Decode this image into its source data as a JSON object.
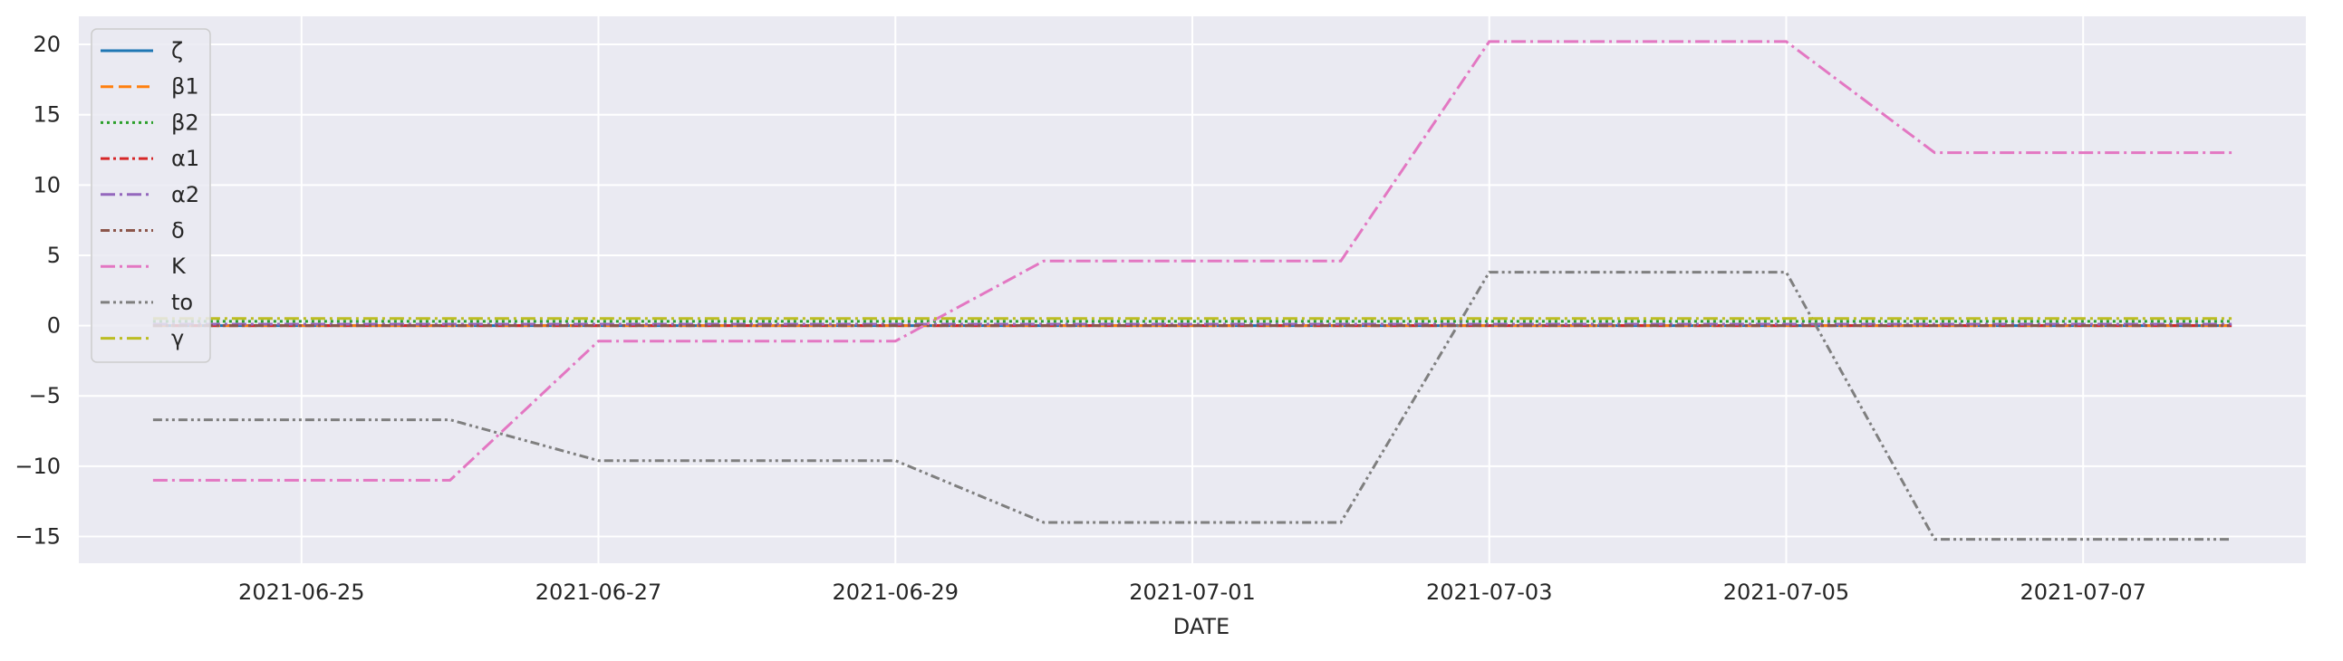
{
  "chart_data": {
    "type": "line",
    "title": "",
    "xlabel": "DATE",
    "ylabel": "",
    "xlim": [
      "2021-06-23T12:00",
      "2021-07-08T12:00"
    ],
    "ylim": [
      -16.9,
      22.0
    ],
    "grid": true,
    "legend_position": "top-left",
    "x_ticks": [
      "2021-06-25",
      "2021-06-27",
      "2021-06-29",
      "2021-07-01",
      "2021-07-03",
      "2021-07-05",
      "2021-07-07"
    ],
    "y_ticks": [
      20,
      15,
      10,
      5,
      0,
      -5,
      -10,
      -15
    ],
    "y_tick_labels": [
      "20",
      "15",
      "10",
      "5",
      "0",
      "−5",
      "−10",
      "−15"
    ],
    "x": [
      "2021-06-24",
      "2021-06-26",
      "2021-06-27",
      "2021-06-29",
      "2021-06-30",
      "2021-07-02",
      "2021-07-03",
      "2021-07-05",
      "2021-07-06",
      "2021-07-08"
    ],
    "series": [
      {
        "name": "ζ",
        "color": "#1f77b4",
        "dash": "solid",
        "values": [
          0,
          0,
          0,
          0,
          0,
          0,
          0,
          0,
          0,
          0
        ]
      },
      {
        "name": "β1",
        "color": "#ff7f0e",
        "dash": "dashed",
        "values": [
          0,
          0,
          0,
          0,
          0,
          0,
          0,
          0,
          0,
          0
        ]
      },
      {
        "name": "β2",
        "color": "#2ca02c",
        "dash": "dotted",
        "values": [
          0.3,
          0.3,
          0.3,
          0.3,
          0.3,
          0.3,
          0.3,
          0.3,
          0.3,
          0.3
        ]
      },
      {
        "name": "α1",
        "color": "#d62728",
        "dash": "dashdot",
        "values": [
          0,
          0,
          0,
          0,
          0,
          0,
          0,
          0,
          0,
          0
        ]
      },
      {
        "name": "α2",
        "color": "#9467bd",
        "dash": "dashdotlong",
        "values": [
          0.1,
          0.1,
          0.1,
          0.1,
          0.1,
          0.1,
          0.1,
          0.1,
          0.1,
          0.1
        ]
      },
      {
        "name": "δ",
        "color": "#8c564b",
        "dash": "dashdotdot",
        "values": [
          0,
          0,
          0,
          0,
          0,
          0,
          0,
          0,
          0,
          0
        ]
      },
      {
        "name": "K",
        "color": "#e377c2",
        "dash": "dashdotlong",
        "values": [
          -11.0,
          -11.0,
          -1.1,
          -1.1,
          4.6,
          4.6,
          20.2,
          20.2,
          12.3,
          12.3
        ]
      },
      {
        "name": "to",
        "color": "#7f7f7f",
        "dash": "dashdotdot",
        "values": [
          -6.7,
          -6.7,
          -9.6,
          -9.6,
          -14.0,
          -14.0,
          3.8,
          3.8,
          -15.2,
          -15.2
        ]
      },
      {
        "name": "γ",
        "color": "#bcbd22",
        "dash": "dashdotlong",
        "values": [
          0.5,
          0.5,
          0.5,
          0.5,
          0.5,
          0.5,
          0.5,
          0.5,
          0.5,
          0.5
        ]
      }
    ]
  }
}
